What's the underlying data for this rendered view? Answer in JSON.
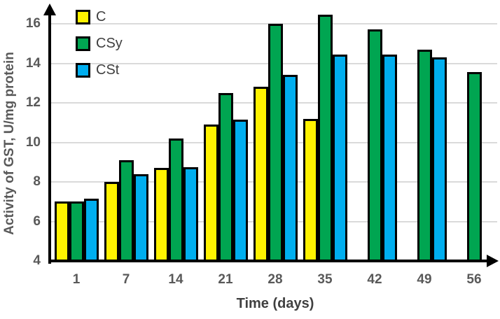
{
  "chart_data": {
    "type": "bar",
    "title": "",
    "xlabel": "Time (days)",
    "ylabel": "Activity of GST, U/mg protein",
    "categories": [
      "1",
      "7",
      "14",
      "21",
      "28",
      "35",
      "42",
      "49",
      "56"
    ],
    "series": [
      {
        "name": "C",
        "color": "#fff200",
        "values": [
          7.0,
          8.0,
          8.7,
          10.9,
          12.8,
          11.2,
          null,
          null,
          null
        ]
      },
      {
        "name": "CSy",
        "color": "#00a551",
        "values": [
          7.0,
          9.1,
          10.2,
          12.5,
          16.0,
          16.45,
          15.7,
          14.7,
          13.55
        ]
      },
      {
        "name": "CSt",
        "color": "#00aeef",
        "values": [
          7.15,
          8.4,
          8.75,
          11.15,
          13.4,
          14.45,
          14.45,
          14.3,
          null
        ]
      }
    ],
    "ylim": [
      4,
      16
    ],
    "ytick_step": 2,
    "grid": true,
    "legend_position": "top-left-inside",
    "colors": {
      "bar_border": "#000000",
      "axis": "#000000",
      "grid": "#dadada",
      "tick_label": "#595959",
      "axis_title": "#595959",
      "legend_text": "#3f3f3f",
      "background": "#ffffff"
    }
  }
}
